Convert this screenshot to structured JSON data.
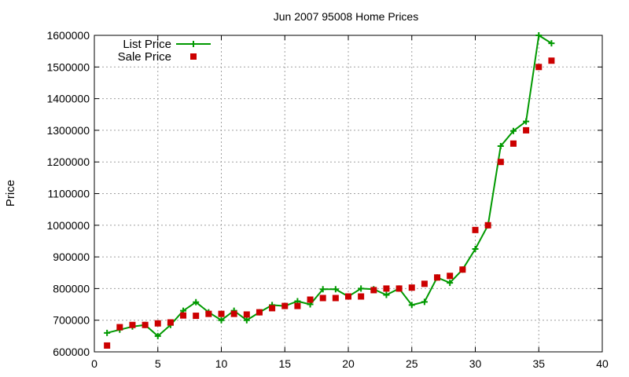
{
  "chart_data": {
    "type": "line",
    "title": "Jun 2007 95008 Home Prices",
    "xlabel": "",
    "ylabel": "Price",
    "xlim": [
      0,
      40
    ],
    "ylim": [
      600000,
      1600000
    ],
    "x_ticks": [
      0,
      5,
      10,
      15,
      20,
      25,
      30,
      35,
      40
    ],
    "y_ticks": [
      600000,
      700000,
      800000,
      900000,
      1000000,
      1100000,
      1200000,
      1300000,
      1400000,
      1500000,
      1600000
    ],
    "grid": true,
    "legend_position": "top-left",
    "series": [
      {
        "name": "List Price",
        "style": "line-with-plus-markers",
        "color": "#009900",
        "x": [
          1,
          2,
          3,
          4,
          5,
          6,
          7,
          8,
          9,
          10,
          11,
          12,
          13,
          14,
          15,
          16,
          17,
          18,
          19,
          20,
          21,
          22,
          23,
          24,
          25,
          26,
          27,
          28,
          29,
          30,
          31,
          32,
          33,
          34,
          35,
          36
        ],
        "values": [
          660000,
          670000,
          680000,
          685000,
          650000,
          685000,
          730000,
          757000,
          725000,
          700000,
          730000,
          700000,
          725000,
          748000,
          745000,
          760000,
          750000,
          798000,
          798000,
          775000,
          800000,
          798000,
          780000,
          800000,
          748000,
          758000,
          835000,
          818000,
          860000,
          925000,
          1000000,
          1250000,
          1298000,
          1328000,
          1600000,
          1575000
        ]
      },
      {
        "name": "Sale Price",
        "style": "square-markers",
        "color": "#cc0000",
        "x": [
          1,
          2,
          3,
          4,
          5,
          6,
          7,
          8,
          9,
          10,
          11,
          12,
          13,
          14,
          15,
          16,
          17,
          18,
          19,
          20,
          21,
          22,
          23,
          24,
          25,
          26,
          27,
          28,
          29,
          30,
          31,
          32,
          33,
          34,
          35,
          36
        ],
        "values": [
          620000,
          678000,
          685000,
          685000,
          690000,
          693000,
          715000,
          714000,
          720000,
          720000,
          720000,
          718000,
          725000,
          738000,
          745000,
          745000,
          765000,
          770000,
          770000,
          775000,
          775000,
          795000,
          800000,
          800000,
          803000,
          815000,
          835000,
          840000,
          860000,
          985000,
          1000000,
          1200000,
          1258000,
          1300000,
          1500000,
          1520000
        ]
      }
    ]
  }
}
